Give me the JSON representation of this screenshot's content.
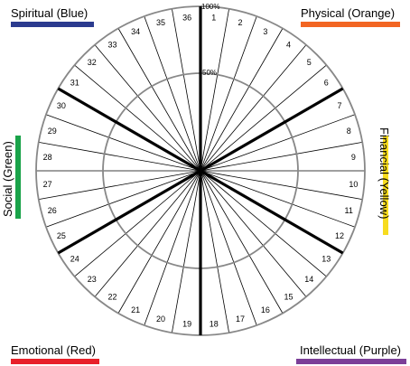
{
  "quadrants": {
    "spiritual": {
      "label": "Spiritual (Blue)",
      "color": "#2b3b8f"
    },
    "physical": {
      "label": "Physical (Orange)",
      "color": "#f26522"
    },
    "financial": {
      "label": "Financial (Yellow)",
      "color": "#f7dc1f"
    },
    "intellectual": {
      "label": "Intellectual (Purple)",
      "color": "#7b3f98"
    },
    "emotional": {
      "label": "Emotional (Red)",
      "color": "#e8202a"
    },
    "social": {
      "label": "Social (Green)",
      "color": "#1aa34a"
    }
  },
  "wheel": {
    "outer_label": "100%",
    "inner_label": "50%",
    "segment_count": 36,
    "segment_numbers": [
      "1",
      "2",
      "3",
      "4",
      "5",
      "6",
      "7",
      "8",
      "9",
      "10",
      "11",
      "12",
      "13",
      "14",
      "15",
      "16",
      "17",
      "18",
      "19",
      "20",
      "21",
      "22",
      "23",
      "24",
      "25",
      "26",
      "27",
      "28",
      "29",
      "30",
      "31",
      "32",
      "33",
      "34",
      "35",
      "36"
    ]
  }
}
